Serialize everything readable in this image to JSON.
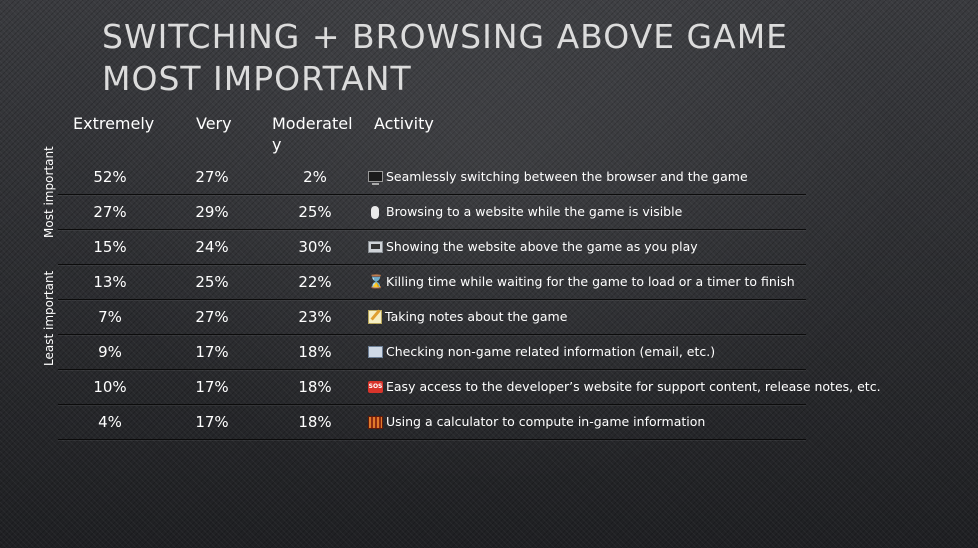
{
  "title": {
    "line1": "SWITCHING + BROWSING ABOVE GAME",
    "line2": "MOST IMPORTANT"
  },
  "columns": {
    "extremely": "Extremely",
    "very": "Very",
    "moderately_line1": "Moderatel",
    "moderately_line2": "y",
    "activity": "Activity"
  },
  "side_labels": {
    "top": "Most important",
    "bottom": "Least important"
  },
  "rows": [
    {
      "extremely": "52%",
      "very": "27%",
      "moderately": "2%",
      "icon": "monitor-icon",
      "activity": "Seamlessly switching between the browser and the game"
    },
    {
      "extremely": "27%",
      "very": "29%",
      "moderately": "25%",
      "icon": "mouse-icon",
      "activity": "Browsing to a website while the game is visible"
    },
    {
      "extremely": "15%",
      "very": "24%",
      "moderately": "30%",
      "icon": "laptop-icon",
      "activity": "Showing the website above the game as you play"
    },
    {
      "extremely": "13%",
      "very": "25%",
      "moderately": "22%",
      "icon": "hourglass-icon",
      "activity": "Killing time while waiting for the game to load or a timer to finish"
    },
    {
      "extremely": "7%",
      "very": "27%",
      "moderately": "23%",
      "icon": "memo-icon",
      "activity": "Taking notes about the game"
    },
    {
      "extremely": "9%",
      "very": "17%",
      "moderately": "18%",
      "icon": "mail-icon",
      "activity": "Checking non-game related information (email, etc.)"
    },
    {
      "extremely": "10%",
      "very": "17%",
      "moderately": "18%",
      "icon": "sos-icon",
      "activity": "Easy access to the developer’s website for support content, release notes, etc."
    },
    {
      "extremely": "4%",
      "very": "17%",
      "moderately": "18%",
      "icon": "abacus-icon",
      "activity": "Using a calculator to compute in-game information"
    }
  ],
  "icon_glyphs": {
    "sos": "SOS",
    "hourglass": "⌛"
  }
}
